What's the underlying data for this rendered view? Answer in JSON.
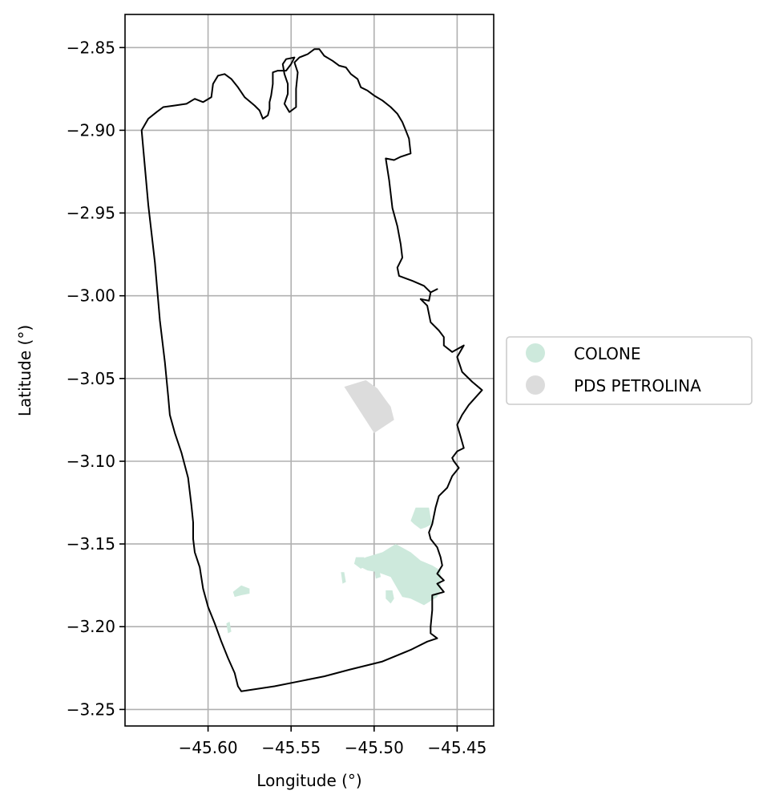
{
  "chart_data": {
    "type": "map",
    "xlabel": "Longitude (°)",
    "ylabel": "Latitude (°)",
    "xlim": [
      -45.65,
      -45.428
    ],
    "ylim": [
      -3.26,
      -2.83
    ],
    "xticks": [
      -45.6,
      -45.55,
      -45.5,
      -45.45
    ],
    "xtick_labels": [
      "−45.60",
      "−45.55",
      "−45.50",
      "−45.45"
    ],
    "yticks": [
      -2.85,
      -2.9,
      -2.95,
      -3.0,
      -3.05,
      -3.1,
      -3.15,
      -3.2,
      -3.25
    ],
    "ytick_labels": [
      "−2.85",
      "−2.90",
      "−2.95",
      "−3.00",
      "−3.05",
      "−3.10",
      "−3.15",
      "−3.20",
      "−3.25"
    ],
    "grid": true,
    "legend_position": "outside-right",
    "legend": [
      {
        "label": "COLONE",
        "color": "#cde9dc"
      },
      {
        "label": "PDS PETROLINA",
        "color": "#dcdcdc"
      }
    ],
    "boundary": {
      "stroke": "#000000",
      "points": [
        [
          -45.64,
          -2.9
        ],
        [
          -45.636,
          -2.893
        ],
        [
          -45.631,
          -2.889
        ],
        [
          -45.627,
          -2.886
        ],
        [
          -45.62,
          -2.885
        ],
        [
          -45.613,
          -2.884
        ],
        [
          -45.608,
          -2.881
        ],
        [
          -45.603,
          -2.883
        ],
        [
          -45.598,
          -2.88
        ],
        [
          -45.597,
          -2.872
        ],
        [
          -45.594,
          -2.867
        ],
        [
          -45.59,
          -2.866
        ],
        [
          -45.586,
          -2.869
        ],
        [
          -45.582,
          -2.874
        ],
        [
          -45.578,
          -2.88
        ],
        [
          -45.572,
          -2.885
        ],
        [
          -45.569,
          -2.888
        ],
        [
          -45.567,
          -2.893
        ],
        [
          -45.564,
          -2.891
        ],
        [
          -45.563,
          -2.887
        ],
        [
          -45.563,
          -2.883
        ],
        [
          -45.562,
          -2.879
        ],
        [
          -45.561,
          -2.872
        ],
        [
          -45.561,
          -2.865
        ],
        [
          -45.558,
          -2.864
        ],
        [
          -45.553,
          -2.864
        ],
        [
          -45.55,
          -2.86
        ],
        [
          -45.548,
          -2.856
        ],
        [
          -45.553,
          -2.857
        ],
        [
          -45.555,
          -2.86
        ],
        [
          -45.554,
          -2.866
        ],
        [
          -45.552,
          -2.872
        ],
        [
          -45.552,
          -2.878
        ],
        [
          -45.554,
          -2.884
        ],
        [
          -45.551,
          -2.889
        ],
        [
          -45.547,
          -2.886
        ],
        [
          -45.547,
          -2.875
        ],
        [
          -45.546,
          -2.865
        ],
        [
          -45.548,
          -2.859
        ],
        [
          -45.545,
          -2.856
        ],
        [
          -45.54,
          -2.854
        ],
        [
          -45.536,
          -2.851
        ],
        [
          -45.533,
          -2.851
        ],
        [
          -45.53,
          -2.855
        ],
        [
          -45.525,
          -2.858
        ],
        [
          -45.521,
          -2.861
        ],
        [
          -45.517,
          -2.862
        ],
        [
          -45.514,
          -2.866
        ],
        [
          -45.51,
          -2.869
        ],
        [
          -45.508,
          -2.874
        ],
        [
          -45.504,
          -2.876
        ],
        [
          -45.5,
          -2.879
        ],
        [
          -45.495,
          -2.882
        ],
        [
          -45.49,
          -2.886
        ],
        [
          -45.486,
          -2.89
        ],
        [
          -45.483,
          -2.895
        ],
        [
          -45.481,
          -2.9
        ],
        [
          -45.479,
          -2.905
        ],
        [
          -45.478,
          -2.914
        ],
        [
          -45.484,
          -2.916
        ],
        [
          -45.488,
          -2.918
        ],
        [
          -45.493,
          -2.917
        ],
        [
          -45.491,
          -2.93
        ],
        [
          -45.489,
          -2.947
        ],
        [
          -45.486,
          -2.958
        ],
        [
          -45.484,
          -2.969
        ],
        [
          -45.483,
          -2.977
        ],
        [
          -45.486,
          -2.983
        ],
        [
          -45.485,
          -2.988
        ],
        [
          -45.477,
          -2.991
        ],
        [
          -45.47,
          -2.994
        ],
        [
          -45.466,
          -2.998
        ],
        [
          -45.462,
          -2.996
        ],
        [
          -45.466,
          -2.998
        ],
        [
          -45.467,
          -3.003
        ],
        [
          -45.472,
          -3.002
        ],
        [
          -45.468,
          -3.006
        ],
        [
          -45.466,
          -3.016
        ],
        [
          -45.461,
          -3.021
        ],
        [
          -45.458,
          -3.025
        ],
        [
          -45.458,
          -3.03
        ],
        [
          -45.453,
          -3.034
        ],
        [
          -45.446,
          -3.03
        ],
        [
          -45.45,
          -3.037
        ],
        [
          -45.447,
          -3.046
        ],
        [
          -45.441,
          -3.052
        ],
        [
          -45.435,
          -3.057
        ],
        [
          -45.443,
          -3.066
        ],
        [
          -45.447,
          -3.072
        ],
        [
          -45.45,
          -3.078
        ],
        [
          -45.448,
          -3.085
        ],
        [
          -45.446,
          -3.092
        ],
        [
          -45.45,
          -3.094
        ],
        [
          -45.453,
          -3.098
        ],
        [
          -45.452,
          -3.1
        ],
        [
          -45.449,
          -3.104
        ],
        [
          -45.453,
          -3.109
        ],
        [
          -45.456,
          -3.116
        ],
        [
          -45.461,
          -3.121
        ],
        [
          -45.463,
          -3.128
        ],
        [
          -45.465,
          -3.138
        ],
        [
          -45.467,
          -3.143
        ],
        [
          -45.466,
          -3.147
        ],
        [
          -45.462,
          -3.152
        ],
        [
          -45.46,
          -3.158
        ],
        [
          -45.459,
          -3.163
        ],
        [
          -45.462,
          -3.168
        ],
        [
          -45.458,
          -3.172
        ],
        [
          -45.462,
          -3.174
        ],
        [
          -45.458,
          -3.179
        ],
        [
          -45.465,
          -3.181
        ],
        [
          -45.465,
          -3.19
        ],
        [
          -45.466,
          -3.2
        ],
        [
          -45.466,
          -3.204
        ],
        [
          -45.462,
          -3.207
        ],
        [
          -45.468,
          -3.209
        ],
        [
          -45.478,
          -3.214
        ],
        [
          -45.495,
          -3.221
        ],
        [
          -45.515,
          -3.226
        ],
        [
          -45.53,
          -3.23
        ],
        [
          -45.545,
          -3.233
        ],
        [
          -45.56,
          -3.236
        ],
        [
          -45.58,
          -3.239
        ],
        [
          -45.582,
          -3.236
        ],
        [
          -45.584,
          -3.228
        ],
        [
          -45.588,
          -3.219
        ],
        [
          -45.592,
          -3.209
        ],
        [
          -45.596,
          -3.198
        ],
        [
          -45.6,
          -3.188
        ],
        [
          -45.603,
          -3.177
        ],
        [
          -45.605,
          -3.164
        ],
        [
          -45.608,
          -3.155
        ],
        [
          -45.609,
          -3.147
        ],
        [
          -45.609,
          -3.137
        ],
        [
          -45.61,
          -3.127
        ],
        [
          -45.612,
          -3.11
        ],
        [
          -45.616,
          -3.095
        ],
        [
          -45.62,
          -3.083
        ],
        [
          -45.623,
          -3.072
        ],
        [
          -45.624,
          -3.061
        ],
        [
          -45.626,
          -3.04
        ],
        [
          -45.629,
          -3.015
        ],
        [
          -45.632,
          -2.98
        ],
        [
          -45.636,
          -2.945
        ],
        [
          -45.64,
          -2.9
        ]
      ]
    },
    "areas": [
      {
        "legend": "PDS PETROLINA",
        "points": [
          [
            -45.518,
            -3.055
          ],
          [
            -45.505,
            -3.051
          ],
          [
            -45.498,
            -3.056
          ],
          [
            -45.493,
            -3.063
          ],
          [
            -45.49,
            -3.067
          ],
          [
            -45.488,
            -3.075
          ],
          [
            -45.497,
            -3.081
          ],
          [
            -45.5,
            -3.083
          ]
        ]
      },
      {
        "legend": "COLONE",
        "points": [
          [
            -45.512,
            -3.162
          ],
          [
            -45.505,
            -3.158
          ],
          [
            -45.495,
            -3.155
          ],
          [
            -45.487,
            -3.15
          ],
          [
            -45.478,
            -3.155
          ],
          [
            -45.472,
            -3.16
          ],
          [
            -45.465,
            -3.163
          ],
          [
            -45.46,
            -3.166
          ],
          [
            -45.46,
            -3.178
          ],
          [
            -45.462,
            -3.182
          ],
          [
            -45.47,
            -3.187
          ],
          [
            -45.478,
            -3.183
          ],
          [
            -45.483,
            -3.182
          ],
          [
            -45.486,
            -3.177
          ],
          [
            -45.49,
            -3.17
          ],
          [
            -45.498,
            -3.167
          ],
          [
            -45.504,
            -3.166
          ]
        ]
      },
      {
        "legend": "COLONE",
        "points": [
          [
            -45.475,
            -3.128
          ],
          [
            -45.467,
            -3.128
          ],
          [
            -45.466,
            -3.134
          ],
          [
            -45.465,
            -3.138
          ],
          [
            -45.469,
            -3.14
          ],
          [
            -45.472,
            -3.141
          ],
          [
            -45.476,
            -3.138
          ],
          [
            -45.478,
            -3.136
          ]
        ]
      },
      {
        "legend": "COLONE",
        "points": [
          [
            -45.511,
            -3.158
          ],
          [
            -45.506,
            -3.158
          ],
          [
            -45.505,
            -3.163
          ],
          [
            -45.508,
            -3.165
          ],
          [
            -45.512,
            -3.162
          ]
        ]
      },
      {
        "legend": "COLONE",
        "points": [
          [
            -45.493,
            -3.178
          ],
          [
            -45.489,
            -3.178
          ],
          [
            -45.488,
            -3.183
          ],
          [
            -45.49,
            -3.186
          ],
          [
            -45.493,
            -3.183
          ]
        ]
      },
      {
        "legend": "COLONE",
        "points": [
          [
            -45.585,
            -3.179
          ],
          [
            -45.58,
            -3.175
          ],
          [
            -45.575,
            -3.177
          ],
          [
            -45.575,
            -3.18
          ],
          [
            -45.58,
            -3.181
          ],
          [
            -45.584,
            -3.182
          ]
        ]
      },
      {
        "legend": "COLONE",
        "points": [
          [
            -45.589,
            -3.198
          ],
          [
            -45.587,
            -3.197
          ],
          [
            -45.586,
            -3.203
          ],
          [
            -45.588,
            -3.204
          ]
        ]
      },
      {
        "legend": "COLONE",
        "points": [
          [
            -45.52,
            -3.167
          ],
          [
            -45.518,
            -3.167
          ],
          [
            -45.517,
            -3.173
          ],
          [
            -45.519,
            -3.174
          ]
        ]
      },
      {
        "legend": "COLONE",
        "points": [
          [
            -45.5,
            -3.165
          ],
          [
            -45.497,
            -3.165
          ],
          [
            -45.496,
            -3.17
          ],
          [
            -45.499,
            -3.171
          ]
        ]
      }
    ]
  }
}
